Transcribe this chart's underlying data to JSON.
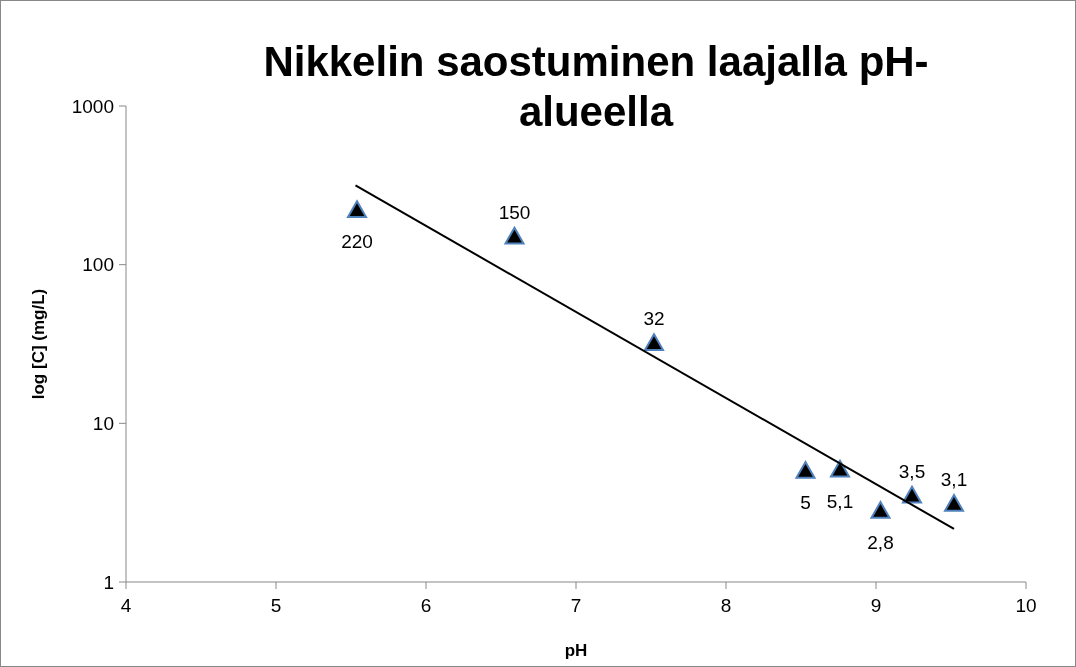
{
  "chart_data": {
    "type": "scatter",
    "title": "Nikkelin saostuminen laajalla pH-alueella",
    "xlabel": "pH",
    "ylabel": "log [C] (mg/L)",
    "xlim": [
      4,
      10
    ],
    "xticks": [
      4,
      5,
      6,
      7,
      8,
      9,
      10
    ],
    "ylim": [
      1,
      1000
    ],
    "yticks": [
      1,
      10,
      100,
      1000
    ],
    "log": "y",
    "grid": false,
    "series": [
      {
        "color": "#000000",
        "marker": "triangle",
        "x": [
          5.54,
          6.59,
          7.52,
          8.53,
          8.76,
          9.03,
          9.24,
          9.52
        ],
        "values": [
          220,
          150,
          32,
          5,
          5.1,
          2.8,
          3.5,
          3.1
        ],
        "value_labels": [
          "220",
          "150",
          "32",
          "5",
          "5,1",
          "2,8",
          "3,5",
          "3,1"
        ]
      },
      {
        "type": "line",
        "color": "#000000",
        "marker": "none",
        "line_style": "solid",
        "x": [
          5.53,
          9.52
        ],
        "values": [
          316,
          2.16
        ]
      }
    ]
  }
}
